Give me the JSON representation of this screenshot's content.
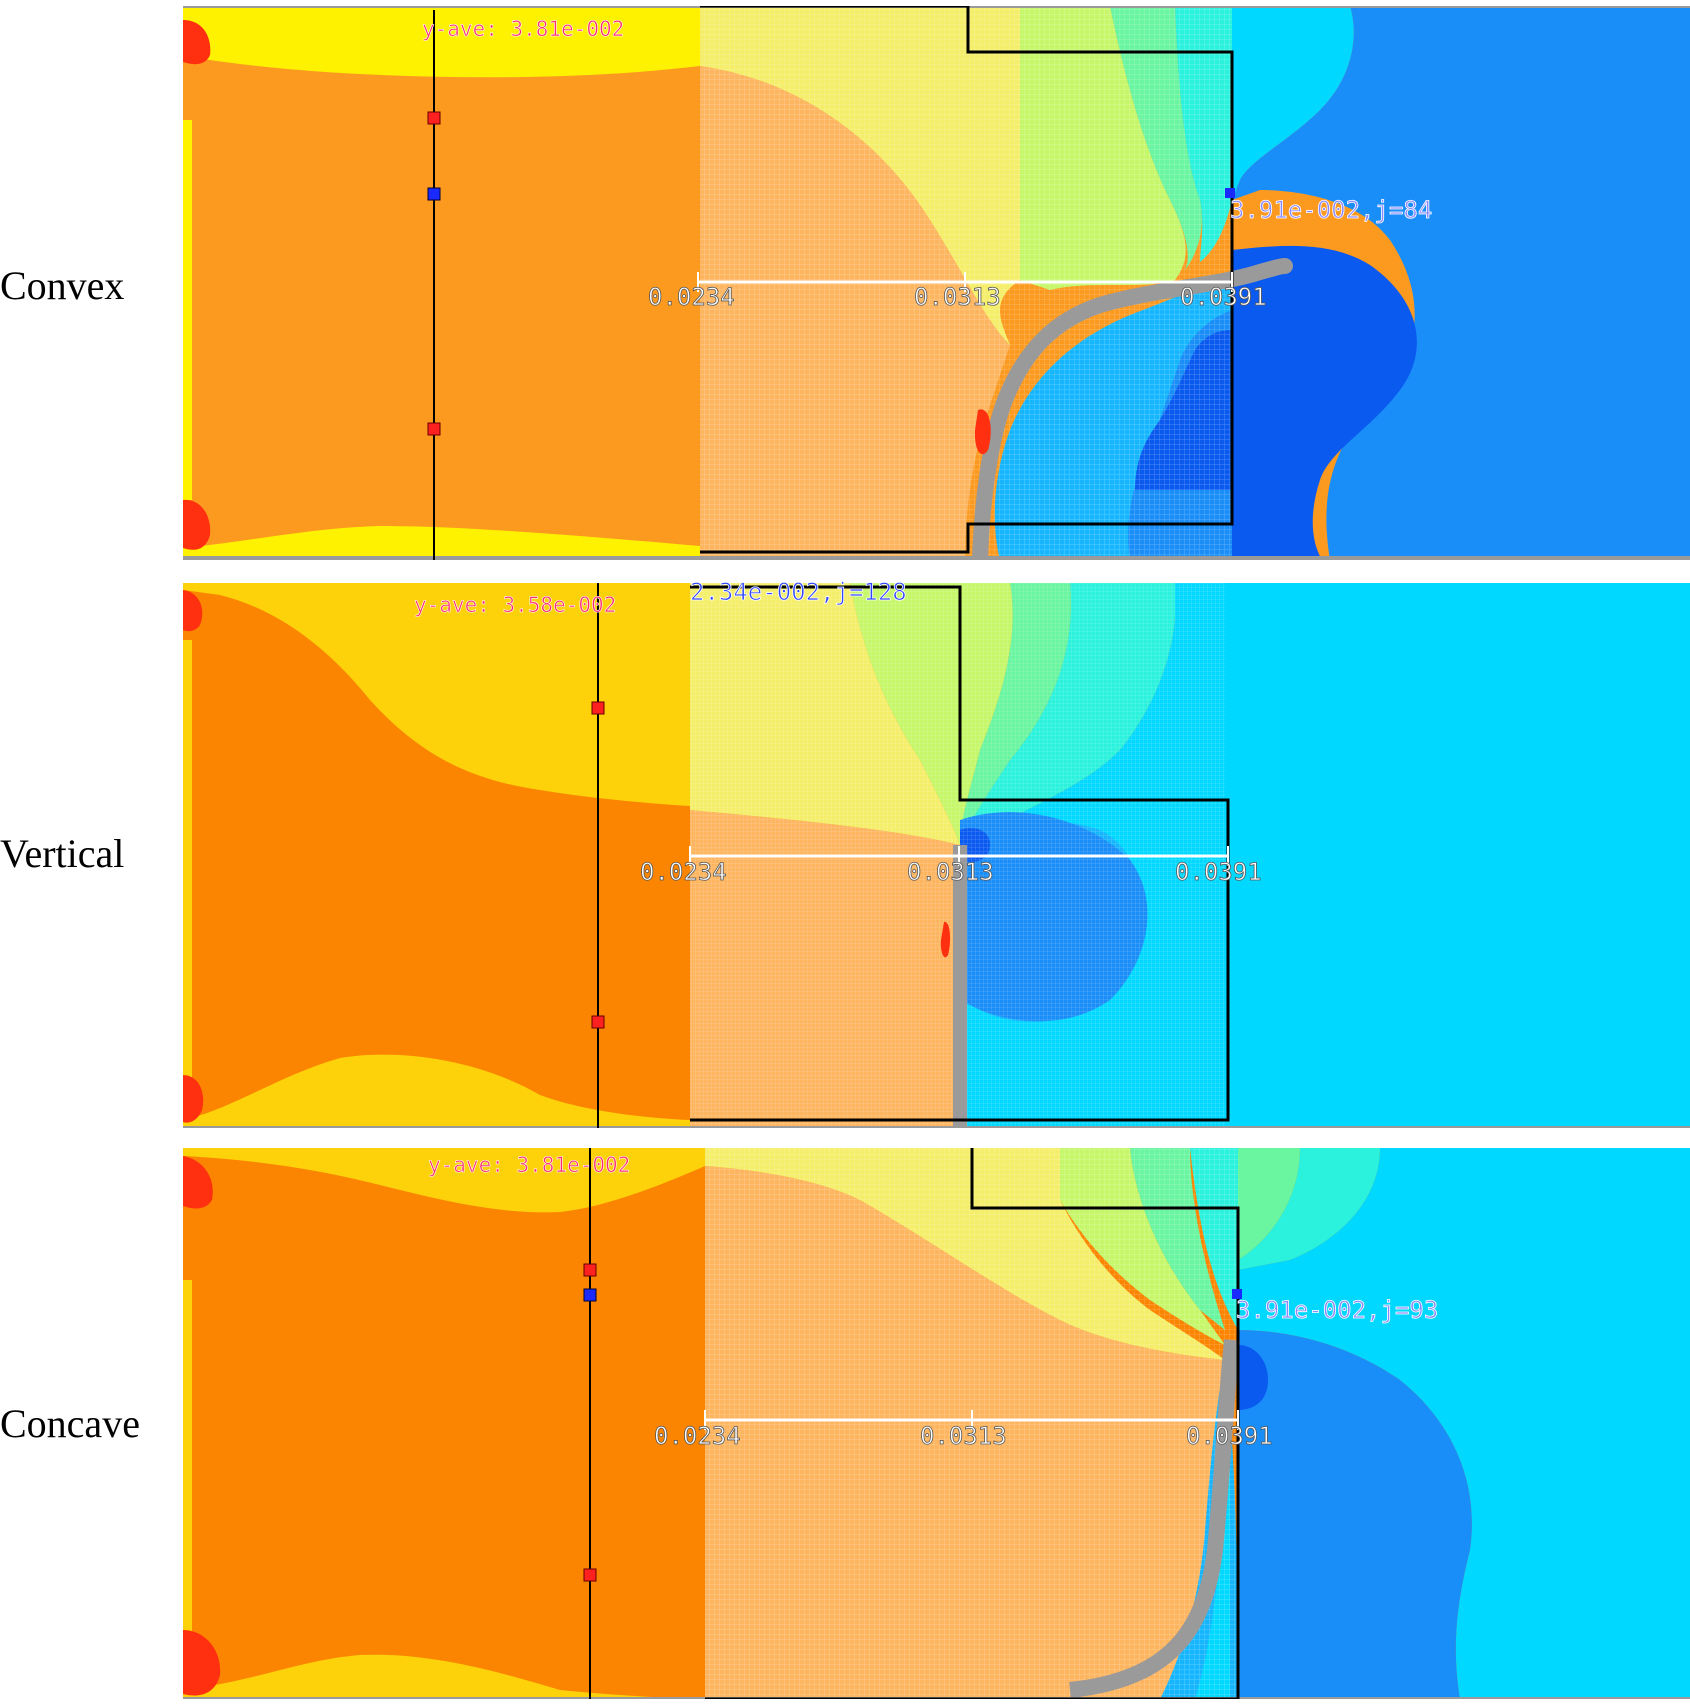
{
  "colors": {
    "deep_orange": "#fb8400",
    "orange": "#fc9a20",
    "light_orange": "#fdb560",
    "yellow": "#fff200",
    "gold": "#fdd20a",
    "light_yellow": "#f4ee6a",
    "lime": "#c6f76a",
    "green": "#6af5a0",
    "aqua": "#2af2dc",
    "cyan": "#00d8ff",
    "sky": "#16b6ff",
    "blue": "#1a8ef8",
    "deep_blue": "#0a5af0",
    "navy": "#0033dd",
    "red": "#ff3010",
    "gray_interface": "#9a9a9a",
    "mold_line": "#000000",
    "scale_line": "#ffffff",
    "label_red": "#ff2a6a",
    "label_blue": "#2f45ff",
    "label_violet": "#8a88ff"
  },
  "panels": [
    {
      "id": "convex",
      "label": "Convex",
      "y_ave": "y-ave: 3.81e-002",
      "marker": "3.91e-002,j=84",
      "ticks": [
        "0.0234",
        "0.0313",
        "0.0391"
      ]
    },
    {
      "id": "vertical",
      "label": "Vertical",
      "y_ave": "y-ave: 3.58e-002",
      "marker": "2.34e-002,j=128",
      "ticks": [
        "0.0234",
        "0.0313",
        "0.0391"
      ]
    },
    {
      "id": "concave",
      "label": "Concave",
      "y_ave": "y-ave: 3.81e-002",
      "marker": "3.91e-002,j=93",
      "ticks": [
        "0.0234",
        "0.0313",
        "0.0391"
      ]
    }
  ]
}
